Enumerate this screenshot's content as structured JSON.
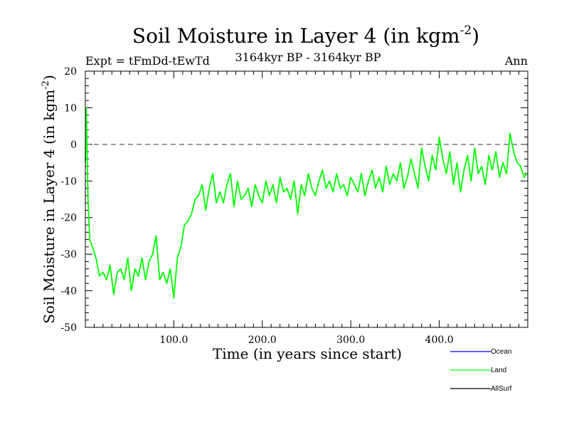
{
  "chart_data": {
    "type": "line",
    "title": {
      "main": "Soil Moisture in Layer 4 (in kgm",
      "sup": "-2",
      "close": ")"
    },
    "subtitle_left": "Expt = tFmDd-tEwTd",
    "subtitle_center": "3164kyr BP - 3164kyr BP",
    "subtitle_right": "Ann",
    "ylabel": {
      "main": "Soil Moisture in Layer 4 (in kgm",
      "sup": "-2",
      "close": ")"
    },
    "xlabel": "Time (in years since start)",
    "xlim": [
      0,
      500
    ],
    "ylim": [
      -50,
      20
    ],
    "x_ticks": [
      100,
      200,
      300,
      400
    ],
    "x_tick_labels": [
      "100.0",
      "200.0",
      "300.0",
      "400.0"
    ],
    "y_ticks": [
      -50,
      -40,
      -30,
      -20,
      -10,
      0,
      10,
      20
    ],
    "y_tick_labels": [
      "-50",
      "-40",
      "-30",
      "-20",
      "-10",
      "0",
      "10",
      "20"
    ],
    "reference_line": {
      "y": 0,
      "style": "dashed"
    },
    "legend": {
      "placement": "bottom-right"
    },
    "series": [
      {
        "name": "Ocean",
        "color": "#0000ff",
        "values": []
      },
      {
        "name": "Land",
        "color": "#00ff00",
        "x": [
          0,
          1,
          2,
          3,
          5,
          8,
          12,
          16,
          20,
          24,
          28,
          32,
          36,
          40,
          44,
          48,
          52,
          56,
          60,
          64,
          68,
          72,
          76,
          80,
          84,
          88,
          92,
          96,
          100,
          104,
          108,
          112,
          116,
          120,
          124,
          128,
          132,
          136,
          140,
          144,
          148,
          152,
          156,
          160,
          164,
          168,
          172,
          176,
          180,
          184,
          188,
          192,
          196,
          200,
          204,
          208,
          212,
          216,
          220,
          224,
          228,
          232,
          236,
          240,
          244,
          248,
          252,
          256,
          260,
          264,
          268,
          272,
          276,
          280,
          284,
          288,
          292,
          296,
          300,
          304,
          308,
          312,
          316,
          320,
          324,
          328,
          332,
          336,
          340,
          344,
          348,
          352,
          356,
          360,
          364,
          368,
          372,
          376,
          380,
          384,
          388,
          392,
          396,
          400,
          404,
          408,
          412,
          416,
          420,
          424,
          428,
          432,
          436,
          440,
          444,
          448,
          452,
          456,
          460,
          464,
          468,
          472,
          476,
          480,
          484,
          488,
          492,
          496,
          499
        ],
        "values": [
          -5,
          10,
          -2,
          -15,
          -26,
          -28,
          -31,
          -36,
          -35,
          -37,
          -33,
          -41,
          -35,
          -34,
          -37,
          -31,
          -40,
          -34,
          -36,
          -31,
          -37,
          -32,
          -30,
          -25,
          -37,
          -35,
          -38,
          -34,
          -42,
          -31,
          -28,
          -22,
          -21,
          -19,
          -15,
          -14,
          -11,
          -18,
          -12,
          -8,
          -16,
          -13,
          -16,
          -11,
          -8,
          -17,
          -10,
          -15,
          -14,
          -12,
          -17,
          -11,
          -14,
          -16,
          -10,
          -14,
          -11,
          -16,
          -9,
          -13,
          -12,
          -15,
          -10,
          -19,
          -11,
          -14,
          -8,
          -12,
          -14,
          -10,
          -7,
          -12,
          -10,
          -13,
          -8,
          -12,
          -11,
          -14,
          -9,
          -11,
          -13,
          -8,
          -14,
          -10,
          -7,
          -12,
          -9,
          -13,
          -6,
          -11,
          -8,
          -10,
          -5,
          -12,
          -9,
          -4,
          -8,
          -12,
          -1,
          -6,
          -10,
          -3,
          -7,
          2,
          -4,
          -8,
          -2,
          -11,
          -5,
          -13,
          -7,
          -3,
          -10,
          -1,
          -8,
          -6,
          -11,
          -3,
          -7,
          -2,
          -9,
          -5,
          -8,
          3,
          -2,
          -5,
          -6,
          -9,
          -8
        ]
      },
      {
        "name": "AllSurf",
        "color": "#000000",
        "values": []
      }
    ]
  }
}
